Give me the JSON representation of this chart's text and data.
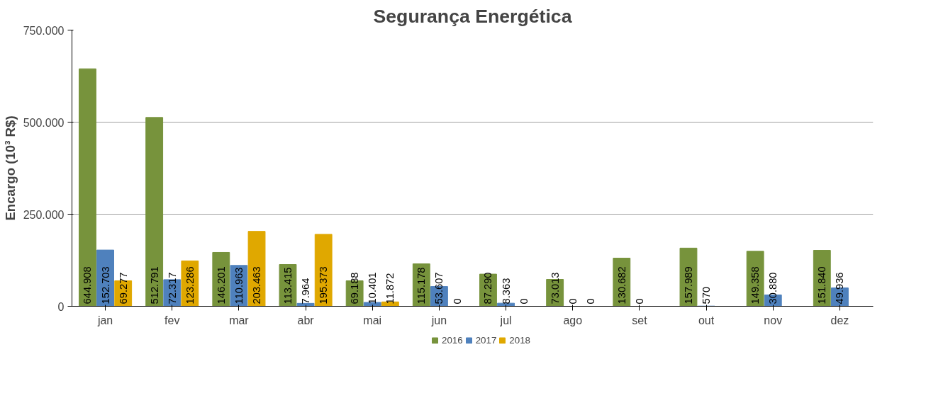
{
  "chart_data": {
    "type": "bar",
    "title": "Segurança Energética",
    "ylabel": "Encargo (10³ R$)",
    "categories": [
      "jan",
      "fev",
      "mar",
      "abr",
      "mai",
      "jun",
      "jul",
      "ago",
      "set",
      "out",
      "nov",
      "dez"
    ],
    "series": [
      {
        "name": "2016",
        "color": "#77933c",
        "values": [
          644908,
          512791,
          146201,
          113415,
          69188,
          115178,
          87290,
          73013,
          130682,
          157989,
          149358,
          151840
        ],
        "value_labels": [
          "644.908",
          "512.791",
          "146.201",
          "113.415",
          "69.188",
          "115.178",
          "87.290",
          "73.013",
          "130.682",
          "157.989",
          "149.358",
          "151.840"
        ]
      },
      {
        "name": "2017",
        "color": "#4f81bd",
        "values": [
          152703,
          72317,
          110963,
          7964,
          10401,
          53607,
          8363,
          0,
          0,
          570,
          30880,
          49936
        ],
        "value_labels": [
          "152.703",
          "72.317",
          "110.963",
          "7.964",
          "10.401",
          "53.607",
          "8.363",
          "0",
          "0",
          "570",
          "30.880",
          "49.936"
        ]
      },
      {
        "name": "2018",
        "color": "#e0a800",
        "values": [
          69277,
          123286,
          203463,
          195373,
          11872,
          0,
          0,
          0,
          null,
          null,
          null,
          null
        ],
        "value_labels": [
          "69.277",
          "123.286",
          "203.463",
          "195.373",
          "11.872",
          "0",
          "0",
          "0",
          null,
          null,
          null,
          null
        ]
      }
    ],
    "ylim": [
      0,
      750000
    ],
    "yticks": [
      0,
      {
        "value": 250000,
        "label": "250.000"
      },
      {
        "value": 500000,
        "label": "500.000"
      },
      {
        "value": 750000,
        "label": "750.000"
      }
    ],
    "grid": "y",
    "legend": "bottom"
  }
}
